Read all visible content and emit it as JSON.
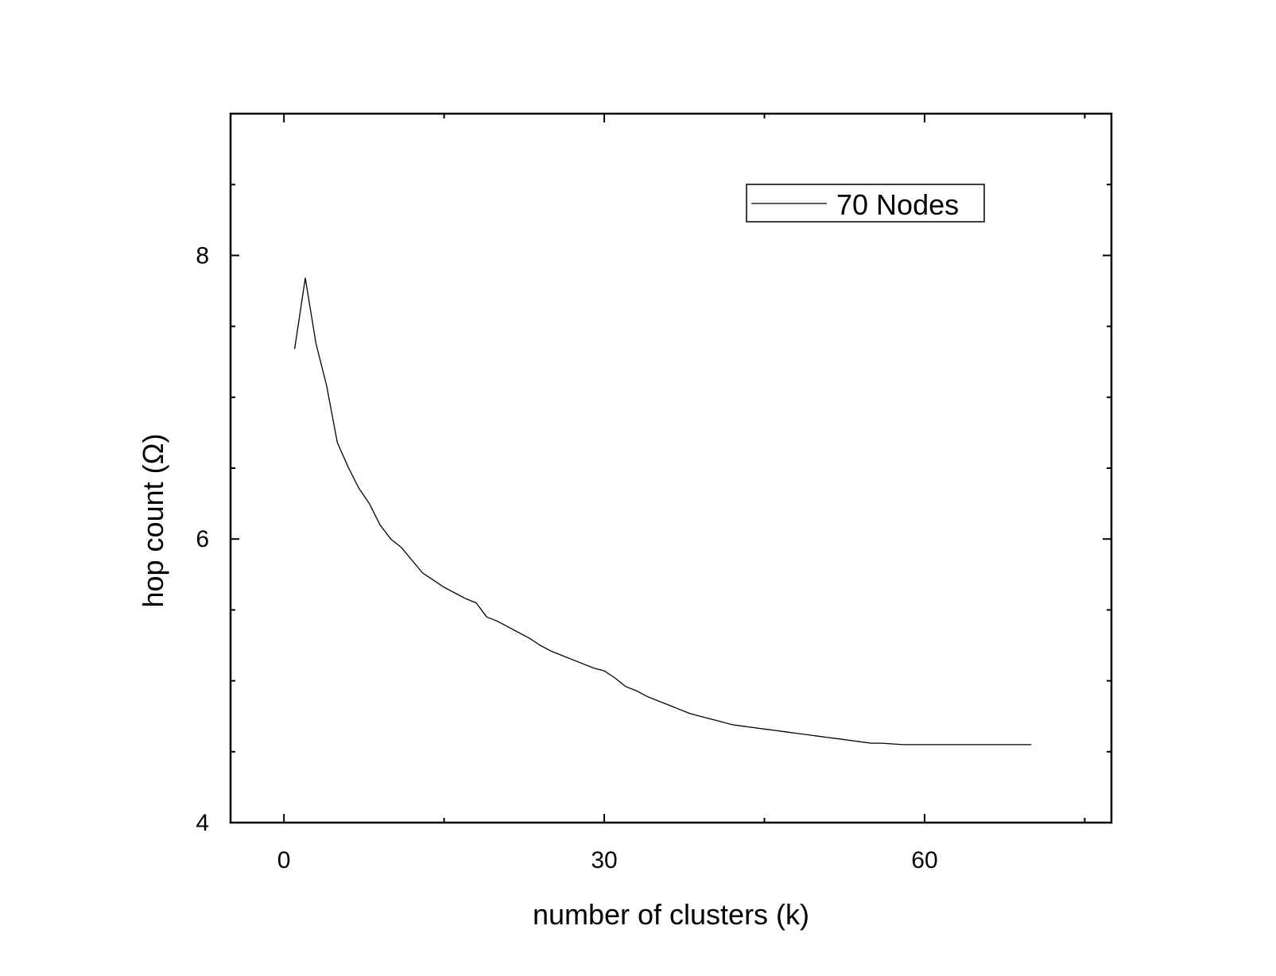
{
  "chart_data": {
    "type": "line",
    "title": "",
    "xlabel": "number of clusters (k)",
    "ylabel": "hop count (Ω)",
    "xlim": [
      -5,
      77.5
    ],
    "ylim": [
      4,
      9
    ],
    "x_ticks": [
      0,
      30,
      60
    ],
    "x_minor_ticks": [
      15,
      45,
      75
    ],
    "y_ticks": [
      4,
      6,
      8
    ],
    "y_minor_ticks": [
      4.5,
      5,
      5.5,
      6.5,
      7,
      7.5,
      8.5
    ],
    "grid": false,
    "legend_position": "top-right",
    "series": [
      {
        "name": "70 Nodes",
        "color": "#000000",
        "x": [
          1,
          2,
          3,
          4,
          5,
          6,
          7,
          8,
          9,
          10,
          11,
          12,
          13,
          14,
          15,
          16,
          17,
          18,
          19,
          20,
          21,
          22,
          23,
          24,
          25,
          26,
          27,
          28,
          29,
          30,
          31,
          32,
          33,
          34,
          35,
          36,
          37,
          38,
          39,
          40,
          41,
          42,
          43,
          44,
          45,
          46,
          47,
          48,
          49,
          50,
          51,
          52,
          53,
          54,
          55,
          56,
          57,
          58,
          59,
          60,
          61,
          62,
          63,
          64,
          65,
          66,
          67,
          68,
          69,
          70
        ],
        "y": [
          7.34,
          7.84,
          7.38,
          7.08,
          6.68,
          6.51,
          6.36,
          6.25,
          6.1,
          6.0,
          5.94,
          5.85,
          5.76,
          5.71,
          5.66,
          5.62,
          5.58,
          5.55,
          5.45,
          5.42,
          5.38,
          5.34,
          5.3,
          5.25,
          5.21,
          5.18,
          5.15,
          5.12,
          5.09,
          5.07,
          5.02,
          4.96,
          4.93,
          4.89,
          4.86,
          4.83,
          4.8,
          4.77,
          4.75,
          4.73,
          4.71,
          4.69,
          4.68,
          4.67,
          4.66,
          4.65,
          4.64,
          4.63,
          4.62,
          4.61,
          4.6,
          4.59,
          4.58,
          4.57,
          4.56,
          4.56,
          4.555,
          4.55,
          4.55,
          4.55,
          4.55,
          4.55,
          4.55,
          4.55,
          4.55,
          4.55,
          4.55,
          4.55,
          4.55,
          4.55
        ]
      }
    ]
  }
}
